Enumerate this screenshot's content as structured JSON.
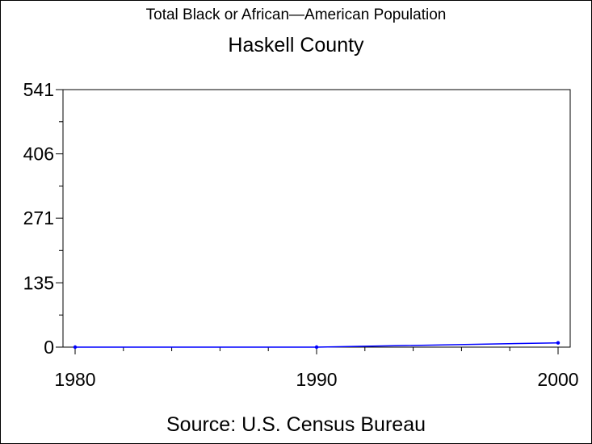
{
  "chart_data": {
    "type": "line",
    "title": "Total Black or African—American Population",
    "subtitle": "Haskell County",
    "footnote": "Source: U.S. Census Bureau",
    "x": [
      1980,
      1990,
      2000
    ],
    "series": [
      {
        "values": [
          0,
          0,
          9
        ],
        "color": "#0000ff"
      }
    ],
    "xticks": [
      "1980",
      "1990",
      "2000"
    ],
    "yticks": [
      "0",
      "135",
      "271",
      "406",
      "541"
    ],
    "xlim": [
      1980,
      2000
    ],
    "ylim": [
      0,
      541
    ],
    "grid": false
  }
}
